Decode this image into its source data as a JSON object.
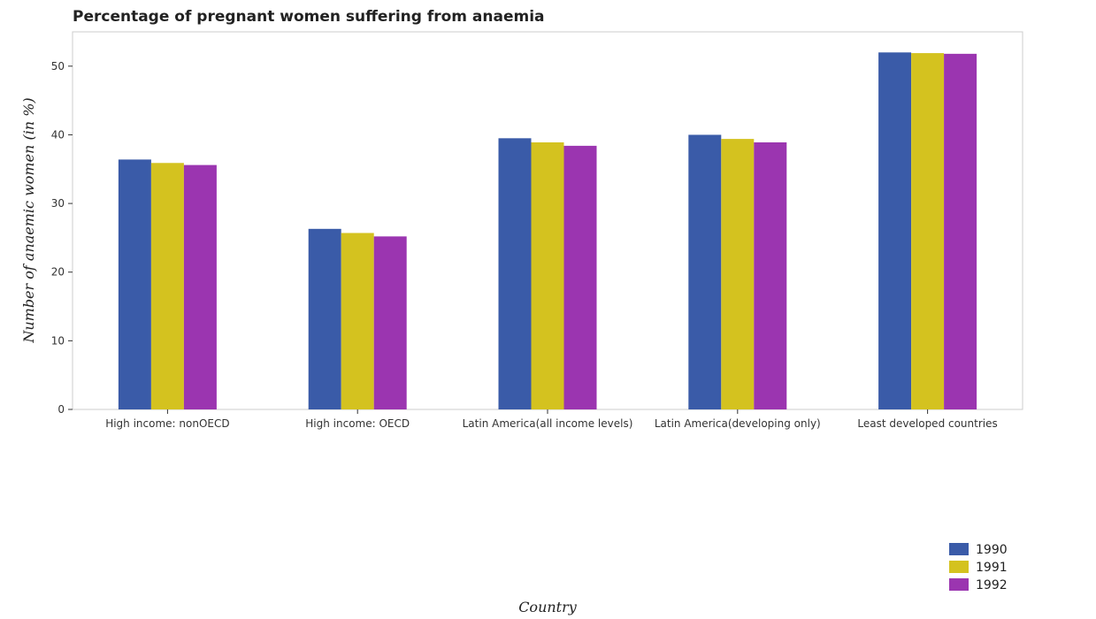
{
  "chart_data": {
    "type": "bar",
    "title": "Percentage of pregnant women suffering from anaemia",
    "xlabel": "Country",
    "ylabel": "Number of anaemic women (in %)",
    "ylim": [
      0,
      55
    ],
    "yticks": [
      0,
      10,
      20,
      30,
      40,
      50
    ],
    "grid": false,
    "legend_position": "bottom-right",
    "categories": [
      "High income: nonOECD",
      "High income: OECD",
      "Latin America(all income levels)",
      "Latin America(developing only)",
      "Least developed countries"
    ],
    "series": [
      {
        "name": "1990",
        "color": "#3a5ba8",
        "values": [
          36.4,
          26.3,
          39.5,
          40.0,
          52.0
        ]
      },
      {
        "name": "1991",
        "color": "#d4c21f",
        "values": [
          35.9,
          25.7,
          38.9,
          39.4,
          51.9
        ]
      },
      {
        "name": "1992",
        "color": "#9b35b0",
        "values": [
          35.6,
          25.2,
          38.4,
          38.9,
          51.8
        ]
      }
    ]
  }
}
